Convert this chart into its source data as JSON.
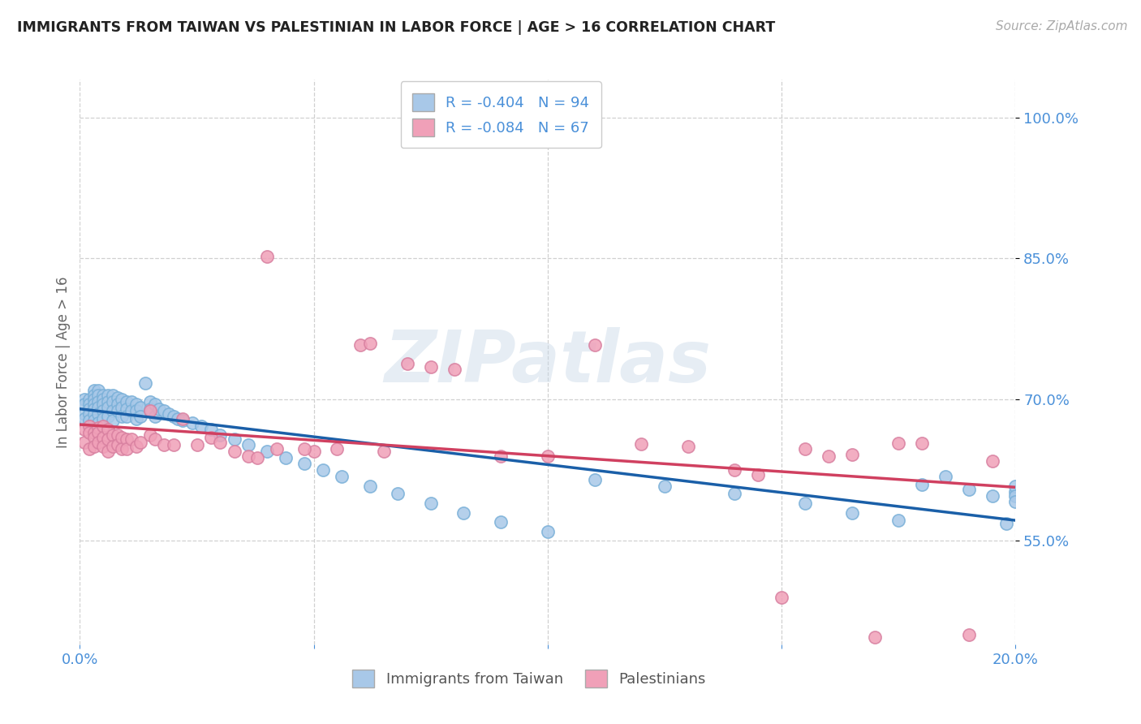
{
  "title": "IMMIGRANTS FROM TAIWAN VS PALESTINIAN IN LABOR FORCE | AGE > 16 CORRELATION CHART",
  "source": "Source: ZipAtlas.com",
  "ylabel": "In Labor Force | Age > 16",
  "xlim": [
    0.0,
    0.2
  ],
  "ylim": [
    0.44,
    1.04
  ],
  "yticks": [
    0.55,
    0.7,
    0.85,
    1.0
  ],
  "ytick_labels": [
    "55.0%",
    "70.0%",
    "85.0%",
    "100.0%"
  ],
  "xticks": [
    0.0,
    0.05,
    0.1,
    0.15,
    0.2
  ],
  "xtick_labels": [
    "0.0%",
    "",
    "",
    "",
    "20.0%"
  ],
  "taiwan_R": -0.404,
  "taiwan_N": 94,
  "palestine_R": -0.084,
  "palestine_N": 67,
  "taiwan_color": "#a8c8e8",
  "taiwan_line_color": "#1a5fa8",
  "palestine_color": "#f0a0b8",
  "palestine_line_color": "#d04060",
  "taiwan_x": [
    0.001,
    0.001,
    0.001,
    0.001,
    0.002,
    0.002,
    0.002,
    0.002,
    0.002,
    0.003,
    0.003,
    0.003,
    0.003,
    0.003,
    0.003,
    0.003,
    0.004,
    0.004,
    0.004,
    0.004,
    0.004,
    0.004,
    0.005,
    0.005,
    0.005,
    0.005,
    0.005,
    0.006,
    0.006,
    0.006,
    0.006,
    0.007,
    0.007,
    0.007,
    0.007,
    0.008,
    0.008,
    0.008,
    0.009,
    0.009,
    0.009,
    0.01,
    0.01,
    0.01,
    0.011,
    0.011,
    0.012,
    0.012,
    0.012,
    0.013,
    0.013,
    0.014,
    0.015,
    0.015,
    0.016,
    0.016,
    0.017,
    0.018,
    0.019,
    0.02,
    0.021,
    0.022,
    0.024,
    0.026,
    0.028,
    0.03,
    0.033,
    0.036,
    0.04,
    0.044,
    0.048,
    0.052,
    0.056,
    0.062,
    0.068,
    0.075,
    0.082,
    0.09,
    0.1,
    0.11,
    0.125,
    0.14,
    0.155,
    0.165,
    0.175,
    0.18,
    0.185,
    0.19,
    0.195,
    0.198,
    0.2,
    0.2,
    0.2,
    0.2
  ],
  "taiwan_y": [
    0.7,
    0.695,
    0.685,
    0.68,
    0.7,
    0.695,
    0.69,
    0.685,
    0.678,
    0.71,
    0.705,
    0.7,
    0.695,
    0.69,
    0.685,
    0.678,
    0.71,
    0.705,
    0.698,
    0.692,
    0.685,
    0.675,
    0.705,
    0.7,
    0.695,
    0.688,
    0.68,
    0.705,
    0.698,
    0.692,
    0.682,
    0.705,
    0.698,
    0.688,
    0.678,
    0.702,
    0.695,
    0.688,
    0.7,
    0.692,
    0.682,
    0.698,
    0.69,
    0.682,
    0.698,
    0.688,
    0.695,
    0.688,
    0.68,
    0.692,
    0.682,
    0.718,
    0.698,
    0.69,
    0.695,
    0.682,
    0.69,
    0.688,
    0.685,
    0.682,
    0.68,
    0.678,
    0.675,
    0.672,
    0.668,
    0.662,
    0.658,
    0.652,
    0.645,
    0.638,
    0.632,
    0.625,
    0.618,
    0.608,
    0.6,
    0.59,
    0.58,
    0.57,
    0.56,
    0.615,
    0.608,
    0.6,
    0.59,
    0.58,
    0.572,
    0.61,
    0.618,
    0.605,
    0.598,
    0.568,
    0.602,
    0.608,
    0.598,
    0.592
  ],
  "palestine_x": [
    0.001,
    0.001,
    0.002,
    0.002,
    0.002,
    0.003,
    0.003,
    0.003,
    0.004,
    0.004,
    0.004,
    0.005,
    0.005,
    0.005,
    0.006,
    0.006,
    0.006,
    0.007,
    0.007,
    0.008,
    0.008,
    0.009,
    0.009,
    0.01,
    0.01,
    0.011,
    0.012,
    0.013,
    0.015,
    0.015,
    0.016,
    0.018,
    0.02,
    0.022,
    0.025,
    0.028,
    0.03,
    0.033,
    0.036,
    0.04,
    0.05,
    0.055,
    0.06,
    0.065,
    0.07,
    0.075,
    0.08,
    0.09,
    0.1,
    0.11,
    0.12,
    0.13,
    0.14,
    0.145,
    0.15,
    0.155,
    0.16,
    0.165,
    0.17,
    0.175,
    0.18,
    0.19,
    0.195,
    0.062,
    0.038,
    0.042,
    0.048
  ],
  "palestine_y": [
    0.668,
    0.655,
    0.672,
    0.665,
    0.648,
    0.665,
    0.66,
    0.65,
    0.67,
    0.665,
    0.655,
    0.672,
    0.66,
    0.65,
    0.668,
    0.658,
    0.645,
    0.662,
    0.65,
    0.662,
    0.652,
    0.66,
    0.648,
    0.658,
    0.648,
    0.658,
    0.65,
    0.655,
    0.688,
    0.662,
    0.658,
    0.652,
    0.652,
    0.68,
    0.652,
    0.66,
    0.655,
    0.645,
    0.64,
    0.852,
    0.645,
    0.648,
    0.758,
    0.645,
    0.738,
    0.735,
    0.732,
    0.64,
    0.64,
    0.758,
    0.653,
    0.65,
    0.625,
    0.62,
    0.49,
    0.648,
    0.64,
    0.642,
    0.448,
    0.654,
    0.654,
    0.45,
    0.635,
    0.76,
    0.638,
    0.648,
    0.648
  ],
  "watermark": "ZIPatlas",
  "background_color": "#ffffff",
  "grid_color": "#d0d0d0",
  "label_color": "#4a90d9",
  "legend_label1": "Immigrants from Taiwan",
  "legend_label2": "Palestinians"
}
